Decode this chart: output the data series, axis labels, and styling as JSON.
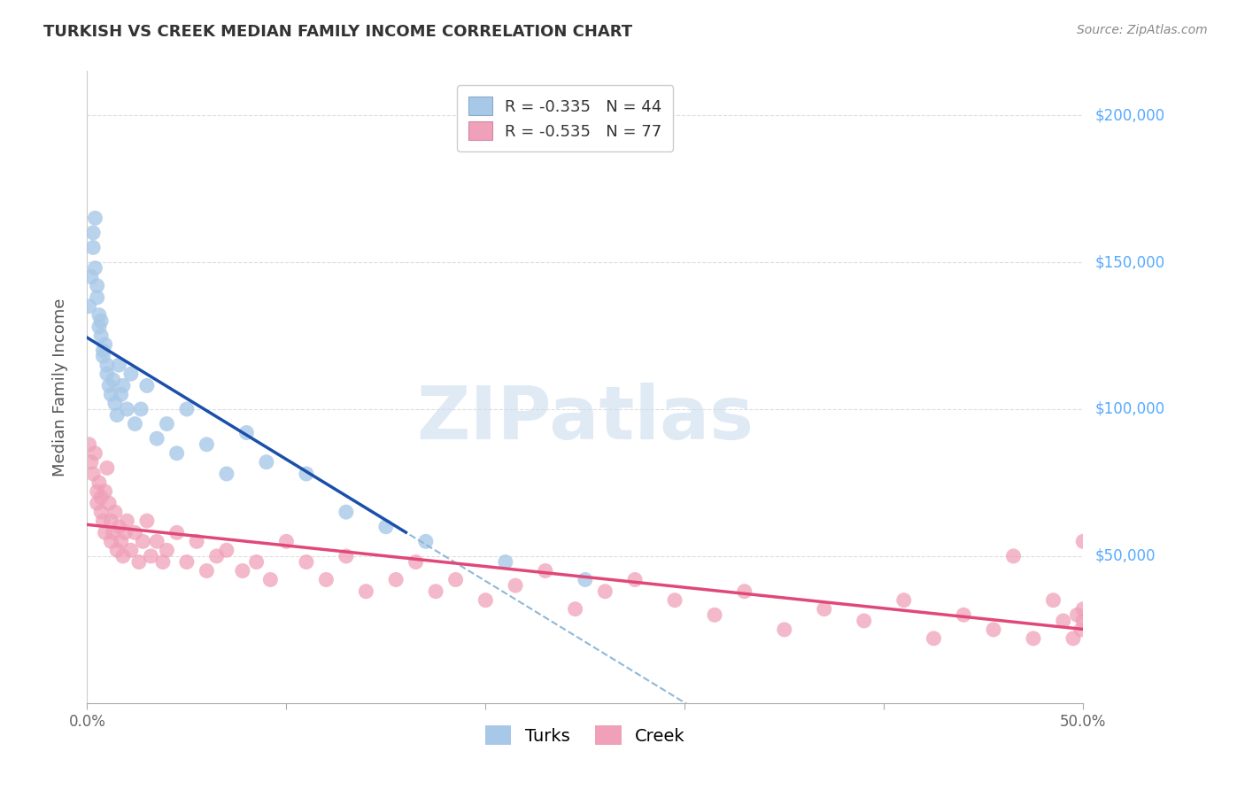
{
  "title": "TURKISH VS CREEK MEDIAN FAMILY INCOME CORRELATION CHART",
  "source": "Source: ZipAtlas.com",
  "ylabel": "Median Family Income",
  "xlim": [
    0.0,
    0.5
  ],
  "ylim": [
    0,
    215000
  ],
  "turks_color": "#a8c8e8",
  "turks_line_color": "#1a4faa",
  "creek_color": "#f0a0b8",
  "creek_line_color": "#e04878",
  "dashed_line_color": "#90b8d8",
  "background_color": "#ffffff",
  "grid_color": "#dddddd",
  "right_label_color": "#55aaff",
  "title_color": "#333333",
  "watermark_color": "#ccddef",
  "legend1_r": "-0.335",
  "legend1_n": "44",
  "legend2_r": "-0.535",
  "legend2_n": "77",
  "bottom_legend1": "Turks",
  "bottom_legend2": "Creek",
  "turks_x": [
    0.001,
    0.002,
    0.003,
    0.003,
    0.004,
    0.004,
    0.005,
    0.005,
    0.006,
    0.006,
    0.007,
    0.007,
    0.008,
    0.008,
    0.009,
    0.01,
    0.01,
    0.011,
    0.012,
    0.013,
    0.014,
    0.015,
    0.016,
    0.017,
    0.018,
    0.02,
    0.022,
    0.024,
    0.027,
    0.03,
    0.035,
    0.04,
    0.045,
    0.05,
    0.06,
    0.07,
    0.08,
    0.09,
    0.11,
    0.13,
    0.15,
    0.17,
    0.21,
    0.25
  ],
  "turks_y": [
    135000,
    145000,
    160000,
    155000,
    165000,
    148000,
    142000,
    138000,
    132000,
    128000,
    130000,
    125000,
    120000,
    118000,
    122000,
    115000,
    112000,
    108000,
    105000,
    110000,
    102000,
    98000,
    115000,
    105000,
    108000,
    100000,
    112000,
    95000,
    100000,
    108000,
    90000,
    95000,
    85000,
    100000,
    88000,
    78000,
    92000,
    82000,
    78000,
    65000,
    60000,
    55000,
    48000,
    42000
  ],
  "creek_x": [
    0.001,
    0.002,
    0.003,
    0.004,
    0.005,
    0.005,
    0.006,
    0.007,
    0.007,
    0.008,
    0.009,
    0.009,
    0.01,
    0.011,
    0.012,
    0.012,
    0.013,
    0.014,
    0.015,
    0.016,
    0.017,
    0.018,
    0.019,
    0.02,
    0.022,
    0.024,
    0.026,
    0.028,
    0.03,
    0.032,
    0.035,
    0.038,
    0.04,
    0.045,
    0.05,
    0.055,
    0.06,
    0.065,
    0.07,
    0.078,
    0.085,
    0.092,
    0.1,
    0.11,
    0.12,
    0.13,
    0.14,
    0.155,
    0.165,
    0.175,
    0.185,
    0.2,
    0.215,
    0.23,
    0.245,
    0.26,
    0.275,
    0.295,
    0.315,
    0.33,
    0.35,
    0.37,
    0.39,
    0.41,
    0.425,
    0.44,
    0.455,
    0.465,
    0.475,
    0.485,
    0.49,
    0.495,
    0.497,
    0.499,
    0.5,
    0.5,
    0.5
  ],
  "creek_y": [
    88000,
    82000,
    78000,
    85000,
    72000,
    68000,
    75000,
    65000,
    70000,
    62000,
    58000,
    72000,
    80000,
    68000,
    55000,
    62000,
    58000,
    65000,
    52000,
    60000,
    55000,
    50000,
    58000,
    62000,
    52000,
    58000,
    48000,
    55000,
    62000,
    50000,
    55000,
    48000,
    52000,
    58000,
    48000,
    55000,
    45000,
    50000,
    52000,
    45000,
    48000,
    42000,
    55000,
    48000,
    42000,
    50000,
    38000,
    42000,
    48000,
    38000,
    42000,
    35000,
    40000,
    45000,
    32000,
    38000,
    42000,
    35000,
    30000,
    38000,
    25000,
    32000,
    28000,
    35000,
    22000,
    30000,
    25000,
    50000,
    22000,
    35000,
    28000,
    22000,
    30000,
    25000,
    55000,
    28000,
    32000
  ]
}
